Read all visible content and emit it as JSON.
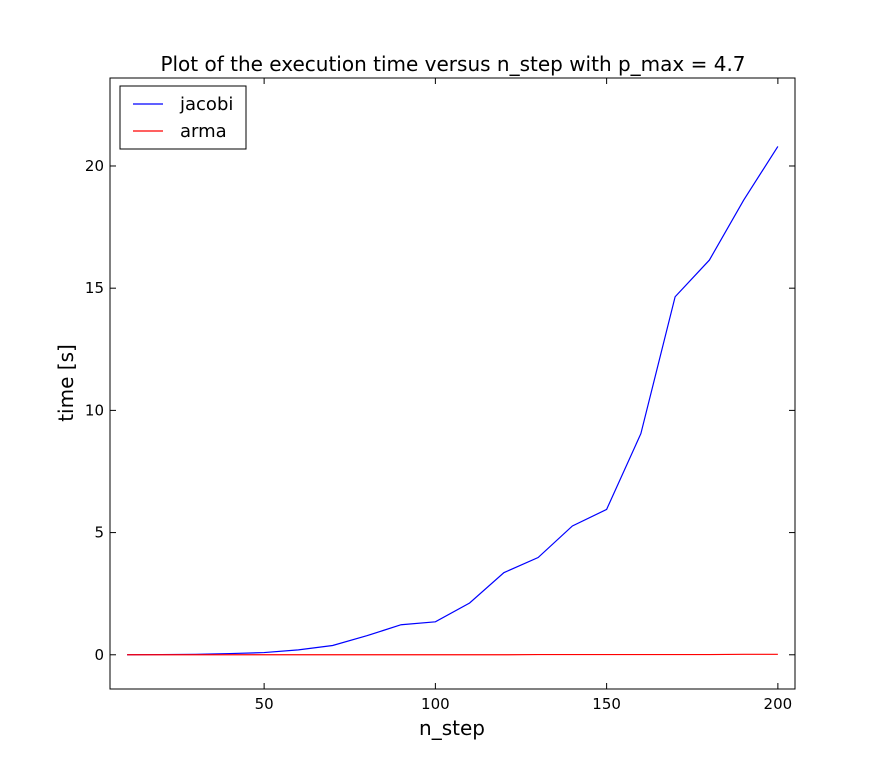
{
  "chart_data": {
    "type": "line",
    "title": "Plot of the execution time versus n_step with p_max = 4.7",
    "xlabel": "n_step",
    "ylabel": "time [s]",
    "xlim": [
      5,
      205
    ],
    "ylim": [
      -1.4,
      23.6
    ],
    "xticks": [
      50,
      100,
      150,
      200
    ],
    "yticks": [
      0,
      5,
      10,
      15,
      20
    ],
    "grid": false,
    "legend_position": "top-left",
    "x": [
      10,
      20,
      30,
      40,
      50,
      60,
      70,
      80,
      90,
      100,
      110,
      120,
      130,
      140,
      150,
      160,
      170,
      180,
      190,
      200
    ],
    "series": [
      {
        "name": "jacobi",
        "color": "#0000ff",
        "values": [
          0.0,
          0.01,
          0.02,
          0.05,
          0.09,
          0.2,
          0.38,
          0.78,
          1.23,
          1.35,
          2.12,
          3.36,
          3.98,
          5.27,
          5.95,
          9.05,
          14.65,
          16.15,
          18.6,
          20.8
        ]
      },
      {
        "name": "arma",
        "color": "#ff0000",
        "values": [
          0.0,
          0.0,
          0.0,
          0.0,
          0.0,
          0.0,
          0.0,
          0.0,
          0.0,
          0.0,
          0.0,
          0.0,
          0.01,
          0.01,
          0.01,
          0.01,
          0.01,
          0.01,
          0.02,
          0.02
        ]
      }
    ]
  }
}
